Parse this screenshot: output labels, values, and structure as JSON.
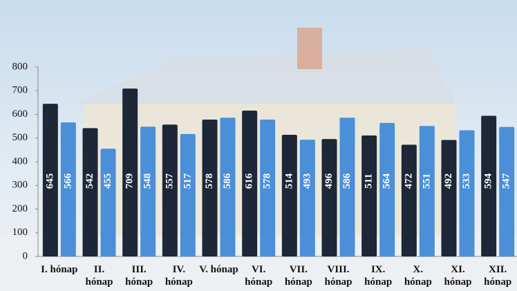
{
  "chart_data": {
    "type": "bar",
    "categories": [
      "I. hónap",
      "II. hónap",
      "III. hónap",
      "IV. hónap",
      "V. hónap",
      "VI. hónap",
      "VII. hónap",
      "VIII. hónap",
      "IX. hónap",
      "X. hónap",
      "XI. hónap",
      "XII. hónap"
    ],
    "series": [
      {
        "color": "#1d2738",
        "values": [
          645,
          542,
          709,
          557,
          578,
          616,
          514,
          496,
          511,
          472,
          492,
          594
        ]
      },
      {
        "color": "#4a8fd8",
        "values": [
          566,
          455,
          548,
          517,
          586,
          578,
          493,
          586,
          564,
          551,
          533,
          547
        ]
      }
    ],
    "ylim": [
      0,
      800
    ],
    "yticks": [
      0,
      100,
      200,
      300,
      400,
      500,
      600,
      700,
      800
    ],
    "grid": false
  }
}
